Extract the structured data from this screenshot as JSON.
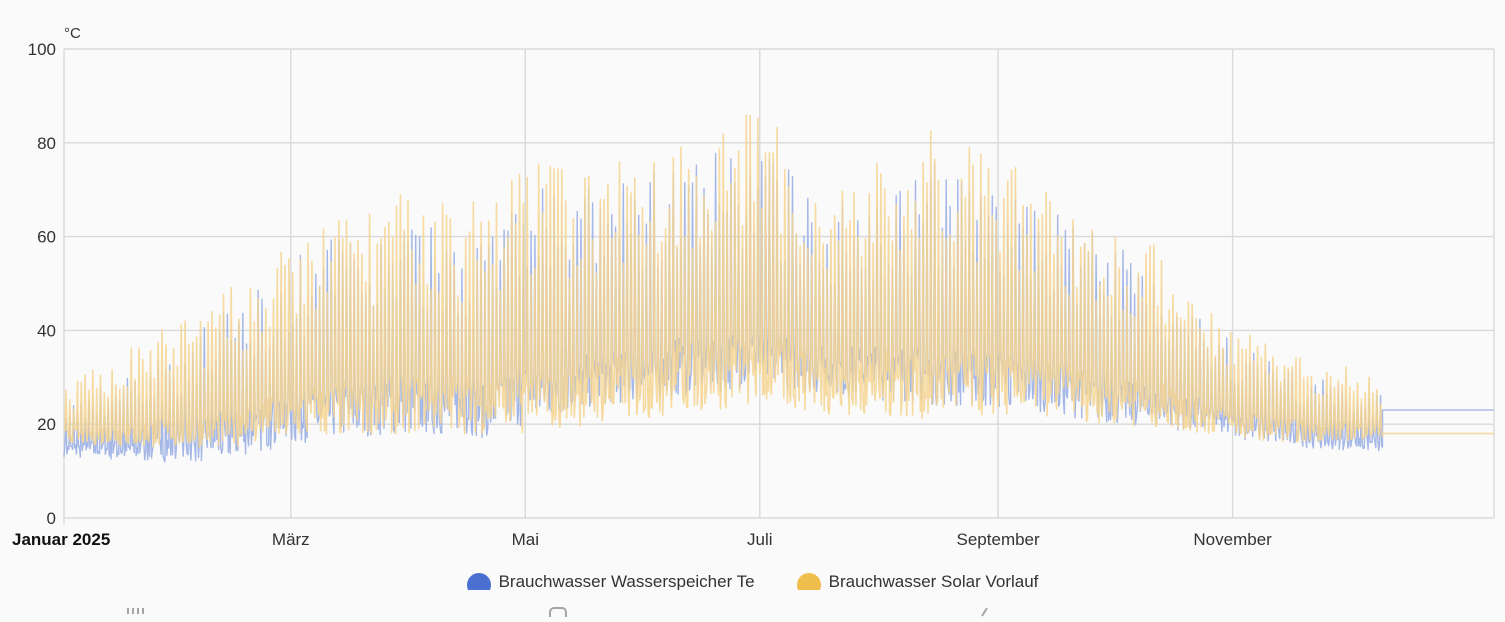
{
  "chart_data": {
    "type": "line",
    "unit": "°C",
    "ylim": [
      0,
      100
    ],
    "y_ticks": [
      "0",
      "20",
      "40",
      "60",
      "80",
      "100"
    ],
    "x_ticks": [
      {
        "label": "Januar 2025",
        "date": "2025-01-01",
        "bold": true
      },
      {
        "label": "März",
        "date": "2025-03-01",
        "bold": false
      },
      {
        "label": "Mai",
        "date": "2025-05-01",
        "bold": false
      },
      {
        "label": "Juli",
        "date": "2025-07-01",
        "bold": false
      },
      {
        "label": "September",
        "date": "2025-09-01",
        "bold": false
      },
      {
        "label": "November",
        "date": "2025-11-01",
        "bold": false
      }
    ],
    "xlim": [
      "2025-01-01",
      "2026-01-08"
    ],
    "grid": true,
    "legend_position": "bottom-center",
    "series": [
      {
        "name": "Brauchwasser Wasserspeicher Te",
        "color": "#4a6fd0",
        "line_color": "#9fb3e6",
        "daily_low": [
          [
            "2025-01-01",
            13
          ],
          [
            "2025-01-20",
            12
          ],
          [
            "2025-02-10",
            12
          ],
          [
            "2025-02-25",
            15
          ],
          [
            "2025-03-10",
            17
          ],
          [
            "2025-04-01",
            18
          ],
          [
            "2025-04-20",
            17
          ],
          [
            "2025-05-01",
            20
          ],
          [
            "2025-05-20",
            24
          ],
          [
            "2025-06-10",
            26
          ],
          [
            "2025-06-30",
            28
          ],
          [
            "2025-07-20",
            26
          ],
          [
            "2025-08-15",
            24
          ],
          [
            "2025-09-10",
            23
          ],
          [
            "2025-09-30",
            20
          ],
          [
            "2025-10-15",
            19
          ],
          [
            "2025-11-01",
            17
          ],
          [
            "2025-11-20",
            15
          ],
          [
            "2025-12-10",
            14
          ]
        ],
        "daily_high": [
          [
            "2025-01-01",
            25
          ],
          [
            "2025-01-20",
            32
          ],
          [
            "2025-02-05",
            40
          ],
          [
            "2025-02-20",
            50
          ],
          [
            "2025-03-10",
            60
          ],
          [
            "2025-04-01",
            63
          ],
          [
            "2025-04-20",
            62
          ],
          [
            "2025-05-01",
            72
          ],
          [
            "2025-05-20",
            70
          ],
          [
            "2025-06-10",
            76
          ],
          [
            "2025-06-30",
            80
          ],
          [
            "2025-07-20",
            68
          ],
          [
            "2025-08-15",
            76
          ],
          [
            "2025-09-10",
            68
          ],
          [
            "2025-09-30",
            60
          ],
          [
            "2025-10-15",
            50
          ],
          [
            "2025-11-01",
            38
          ],
          [
            "2025-11-20",
            30
          ],
          [
            "2025-12-10",
            27
          ]
        ],
        "flat_after": {
          "from": "2025-12-10",
          "value": 23
        }
      },
      {
        "name": "Brauchwasser Solar Vorlauf",
        "color": "#f0be4c",
        "line_color": "#f5d48f",
        "daily_low": [
          [
            "2025-01-01",
            16
          ],
          [
            "2025-01-20",
            15
          ],
          [
            "2025-02-10",
            15
          ],
          [
            "2025-02-25",
            16
          ],
          [
            "2025-03-10",
            17
          ],
          [
            "2025-04-01",
            18
          ],
          [
            "2025-04-20",
            18
          ],
          [
            "2025-05-01",
            18
          ],
          [
            "2025-05-20",
            20
          ],
          [
            "2025-06-10",
            22
          ],
          [
            "2025-06-30",
            24
          ],
          [
            "2025-07-20",
            22
          ],
          [
            "2025-08-15",
            21
          ],
          [
            "2025-09-10",
            22
          ],
          [
            "2025-09-30",
            20
          ],
          [
            "2025-10-15",
            19
          ],
          [
            "2025-11-01",
            17
          ],
          [
            "2025-11-20",
            16
          ],
          [
            "2025-12-10",
            17
          ]
        ],
        "daily_high": [
          [
            "2025-01-01",
            28
          ],
          [
            "2025-01-20",
            38
          ],
          [
            "2025-02-05",
            45
          ],
          [
            "2025-02-20",
            53
          ],
          [
            "2025-03-10",
            65
          ],
          [
            "2025-04-01",
            70
          ],
          [
            "2025-04-20",
            68
          ],
          [
            "2025-05-01",
            78
          ],
          [
            "2025-05-20",
            75
          ],
          [
            "2025-06-10",
            84
          ],
          [
            "2025-06-30",
            88
          ],
          [
            "2025-07-20",
            72
          ],
          [
            "2025-08-15",
            83
          ],
          [
            "2025-09-10",
            73
          ],
          [
            "2025-09-30",
            62
          ],
          [
            "2025-10-15",
            57
          ],
          [
            "2025-11-01",
            42
          ],
          [
            "2025-11-20",
            35
          ],
          [
            "2025-12-10",
            30
          ]
        ],
        "flat_after": {
          "from": "2025-12-10",
          "value": 18
        }
      }
    ]
  }
}
